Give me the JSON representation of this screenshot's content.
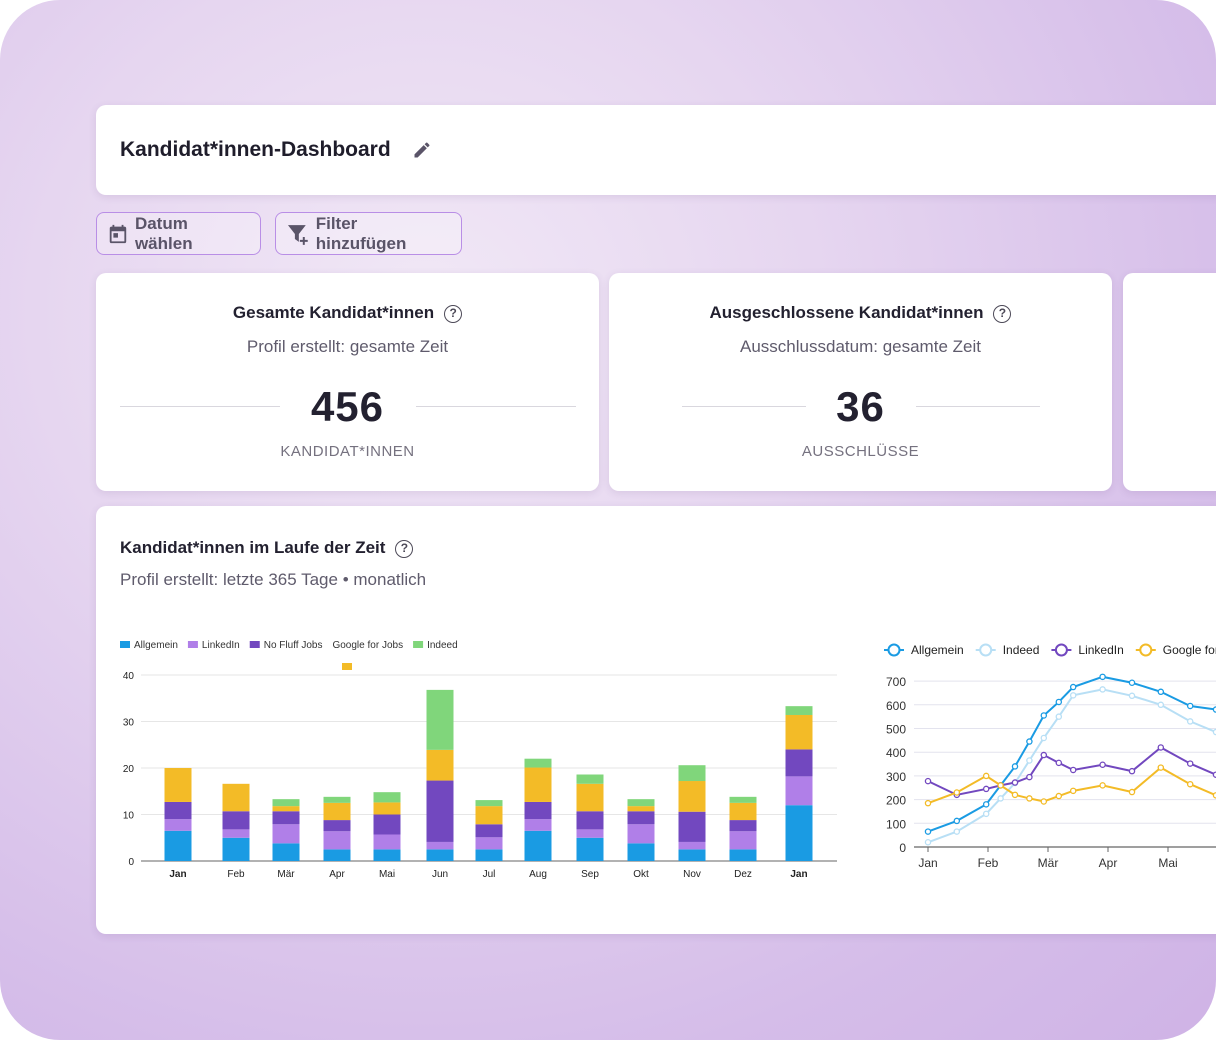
{
  "header": {
    "title": "Kandidat*innen-Dashboard"
  },
  "toolbar": {
    "date_label": "Datum wählen",
    "filter_label": "Filter hinzufügen"
  },
  "kpis": [
    {
      "title": "Gesamte Kandidat*innen",
      "subtitle": "Profil erstellt: gesamte Zeit",
      "value": "456",
      "unit": "KANDIDAT*INNEN"
    },
    {
      "title": "Ausgeschlossene Kandidat*innen",
      "subtitle": "Ausschlussdatum: gesamte Zeit",
      "value": "36",
      "unit": "AUSSCHLÜSSE"
    }
  ],
  "chart_section": {
    "title": "Kandidat*innen im Laufe der Zeit",
    "subtitle": "Profil erstellt: letzte 365 Tage • monatlich"
  },
  "colors": {
    "Allgemein": "#1a9be3",
    "LinkedIn": "#b07fe8",
    "No Fluff Jobs": "#7248bf",
    "Google for Jobs": "#f3bb27",
    "Indeed": "#80d67b",
    "IndeedLine": "#b8dff5",
    "LinkedInLine": "#7248bf"
  },
  "chart_data": [
    {
      "type": "bar",
      "stacked": true,
      "title": "",
      "xlabel": "",
      "ylabel": "",
      "ylim": [
        0,
        40
      ],
      "yticks": [
        0,
        10,
        20,
        30,
        40
      ],
      "grid": true,
      "legend": "top-left",
      "categories": [
        "Jan",
        "Feb",
        "Mär",
        "Apr",
        "Mai",
        "Jun",
        "Jul",
        "Aug",
        "Sep",
        "Okt",
        "Nov",
        "Dez",
        "Jan"
      ],
      "series": [
        {
          "name": "Allgemein",
          "values": [
            6.5,
            5,
            3.8,
            2.5,
            2.5,
            2.5,
            2.5,
            6.5,
            5,
            3.8,
            2.5,
            2.5,
            12
          ]
        },
        {
          "name": "LinkedIn",
          "values": [
            2.5,
            1.8,
            4.1,
            3.9,
            3.2,
            1.6,
            2.6,
            2.5,
            1.8,
            4.1,
            1.6,
            3.9,
            6.2
          ]
        },
        {
          "name": "No Fluff Jobs",
          "values": [
            3.7,
            3.9,
            2.8,
            2.4,
            4.3,
            13.2,
            2.8,
            3.7,
            3.9,
            2.8,
            6.5,
            2.4,
            5.8
          ]
        },
        {
          "name": "Google for Jobs",
          "values": [
            7.3,
            5.9,
            1.1,
            3.7,
            2.6,
            6.6,
            3.9,
            7.4,
            5.9,
            1.1,
            6.6,
            3.7,
            7.4
          ]
        },
        {
          "name": "Indeed",
          "values": [
            0,
            0,
            1.5,
            1.3,
            2.2,
            12.9,
            1.3,
            1.9,
            2,
            1.5,
            3.4,
            1.3,
            1.9
          ]
        }
      ]
    },
    {
      "type": "line",
      "title": "",
      "xlabel": "",
      "ylabel": "",
      "ylim": [
        0,
        700
      ],
      "yticks": [
        0,
        100,
        200,
        300,
        400,
        500,
        600,
        700
      ],
      "grid": true,
      "legend": "top",
      "xticks": [
        "Jan",
        "Feb",
        "Mär",
        "Apr",
        "Mai"
      ],
      "x": [
        0,
        0.48,
        0.97,
        1.21,
        1.45,
        1.69,
        1.93,
        2.18,
        2.42,
        2.91,
        3.4,
        3.88,
        4.37,
        4.8
      ],
      "series": [
        {
          "name": "Allgemein",
          "values": [
            65,
            110,
            180,
            260,
            340,
            445,
            555,
            612,
            675,
            718,
            693,
            655,
            595,
            580
          ]
        },
        {
          "name": "Indeed",
          "values": [
            20,
            65,
            140,
            205,
            270,
            365,
            460,
            550,
            640,
            665,
            638,
            600,
            530,
            485
          ]
        },
        {
          "name": "LinkedIn",
          "values": [
            278,
            220,
            245,
            260,
            272,
            295,
            388,
            355,
            325,
            347,
            320,
            420,
            352,
            305
          ]
        },
        {
          "name": "Google for Jobs",
          "values": [
            185,
            230,
            300,
            260,
            220,
            205,
            192,
            215,
            237,
            260,
            232,
            335,
            265,
            218
          ]
        }
      ]
    }
  ]
}
